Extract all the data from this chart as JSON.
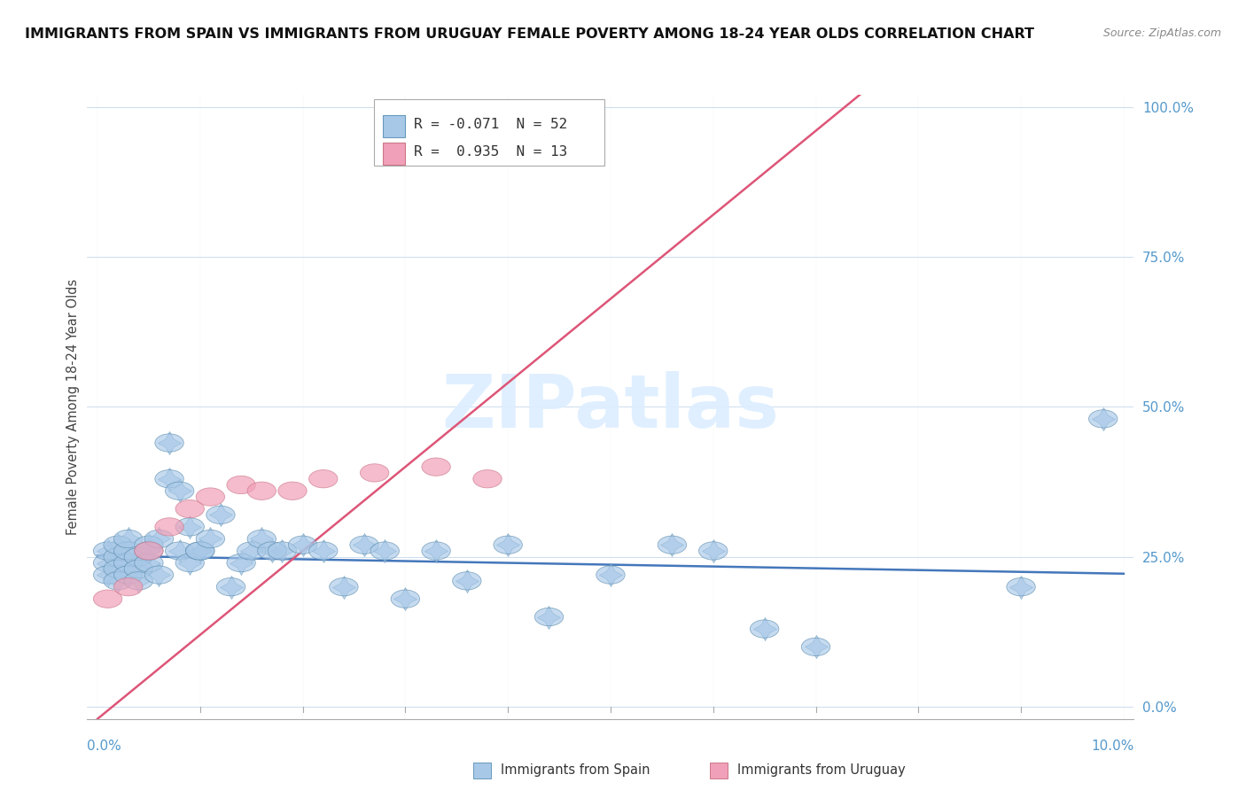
{
  "title": "IMMIGRANTS FROM SPAIN VS IMMIGRANTS FROM URUGUAY FEMALE POVERTY AMONG 18-24 YEAR OLDS CORRELATION CHART",
  "source": "Source: ZipAtlas.com",
  "ylabel": "Female Poverty Among 18-24 Year Olds",
  "legend_r_spain": "-0.071",
  "legend_n_spain": "52",
  "legend_r_uruguay": "0.935",
  "legend_n_uruguay": "13",
  "color_spain": "#a8c8e8",
  "color_uruguay": "#f0a0b8",
  "color_spain_line": "#4477bb",
  "color_uruguay_line": "#dd5577",
  "watermark_color": "#ddeeff",
  "spain_x": [
    0.001,
    0.001,
    0.001,
    0.002,
    0.002,
    0.002,
    0.002,
    0.003,
    0.003,
    0.003,
    0.003,
    0.004,
    0.004,
    0.004,
    0.005,
    0.005,
    0.005,
    0.006,
    0.006,
    0.007,
    0.007,
    0.008,
    0.008,
    0.009,
    0.009,
    0.01,
    0.01,
    0.011,
    0.012,
    0.013,
    0.014,
    0.015,
    0.016,
    0.017,
    0.018,
    0.02,
    0.022,
    0.024,
    0.026,
    0.028,
    0.03,
    0.033,
    0.036,
    0.04,
    0.044,
    0.05,
    0.056,
    0.06,
    0.065,
    0.07,
    0.09,
    0.098
  ],
  "spain_y": [
    0.24,
    0.26,
    0.22,
    0.25,
    0.23,
    0.27,
    0.21,
    0.24,
    0.26,
    0.28,
    0.22,
    0.25,
    0.23,
    0.21,
    0.27,
    0.24,
    0.26,
    0.28,
    0.22,
    0.44,
    0.38,
    0.26,
    0.36,
    0.24,
    0.3,
    0.26,
    0.26,
    0.28,
    0.32,
    0.2,
    0.24,
    0.26,
    0.28,
    0.26,
    0.26,
    0.27,
    0.26,
    0.2,
    0.27,
    0.26,
    0.18,
    0.26,
    0.21,
    0.27,
    0.15,
    0.22,
    0.27,
    0.26,
    0.13,
    0.1,
    0.2,
    0.48
  ],
  "uruguay_x": [
    0.001,
    0.003,
    0.005,
    0.007,
    0.009,
    0.011,
    0.014,
    0.016,
    0.019,
    0.022,
    0.027,
    0.033,
    0.038
  ],
  "uruguay_y": [
    0.18,
    0.2,
    0.26,
    0.3,
    0.33,
    0.35,
    0.37,
    0.36,
    0.36,
    0.38,
    0.39,
    0.4,
    0.38
  ],
  "xlim": [
    0.0,
    0.1
  ],
  "ylim": [
    0.0,
    1.0
  ],
  "yticks": [
    0.0,
    0.25,
    0.5,
    0.75,
    1.0
  ],
  "ytick_labels": [
    "0.0%",
    "25.0%",
    "50.0%",
    "75.0%",
    "100.0%"
  ]
}
